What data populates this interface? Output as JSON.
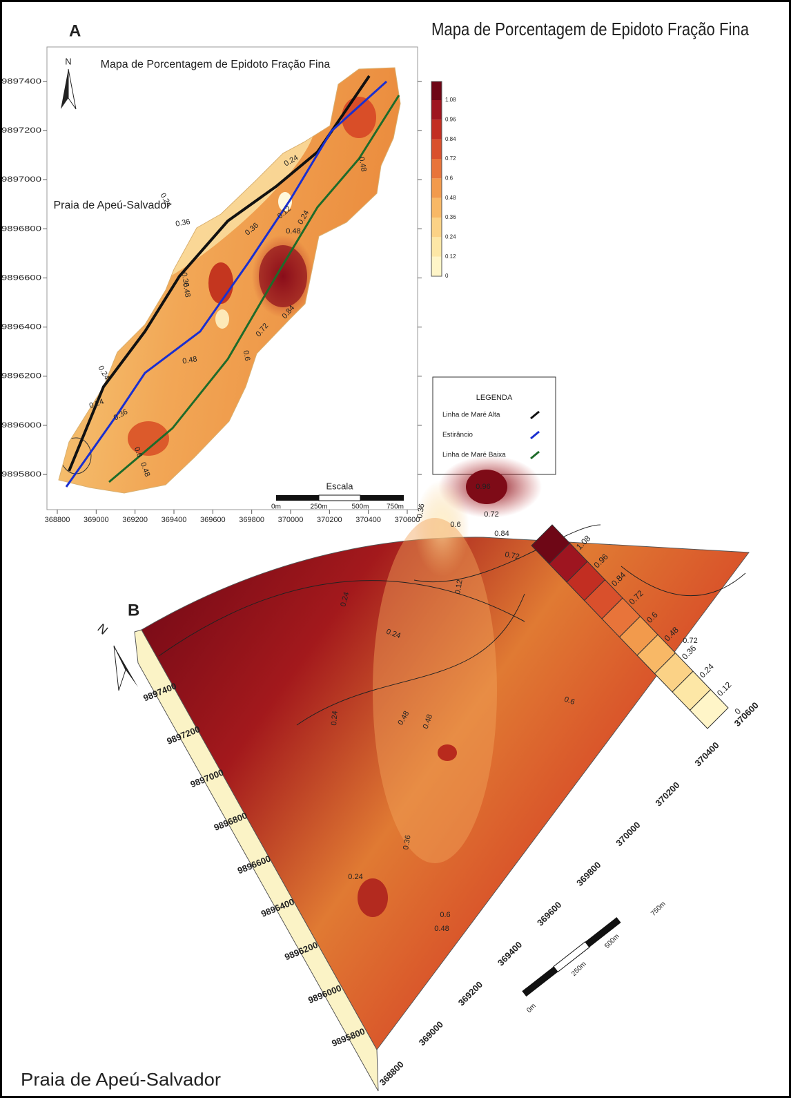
{
  "panel_a": {
    "label": "A",
    "figure_title": "Mapa de Porcentagem de Epidoto Fração Fina",
    "map_title": "Mapa de Porcentagem de Epidoto Fração Fina",
    "north": "N",
    "place": "Praia de Apeú-Salvador",
    "yticks": [
      9895800,
      9896000,
      9896200,
      9896400,
      9896600,
      9896800,
      9897000,
      9897200,
      9897400
    ],
    "xticks": [
      368800,
      369000,
      369200,
      369400,
      369600,
      369800,
      370000,
      370200,
      370400,
      370600
    ],
    "colorbar": [
      0,
      0.12,
      0.24,
      0.36,
      0.48,
      0.6,
      0.72,
      0.84,
      0.96,
      1.08
    ],
    "legend": {
      "title": "LEGENDA",
      "items": [
        {
          "name": "Linha de Maré Alta",
          "color": "#111111"
        },
        {
          "name": "Estirâncio",
          "color": "#1a2fd0"
        },
        {
          "name": "Linha de Maré Baixa",
          "color": "#1e6b2a"
        }
      ]
    },
    "scale": {
      "title": "Escala",
      "labels": [
        "0m",
        "250m",
        "500m",
        "750m"
      ]
    },
    "contour_labels": [
      0.24,
      0.24,
      0.36,
      0.12,
      0.24,
      0.36,
      0.48,
      0.36,
      0.48,
      0.48,
      0.24,
      0.24,
      0.36,
      0.6,
      0.48,
      0.84,
      0.72,
      0.6,
      0.48
    ]
  },
  "panel_b": {
    "label": "B",
    "north": "N",
    "place": "Praia de Apeú-Salvador",
    "yticks": [
      9895800,
      9896000,
      9896200,
      9896400,
      9896600,
      9896800,
      9897000,
      9897200,
      9897400
    ],
    "xticks": [
      368800,
      369000,
      369200,
      369400,
      369600,
      369800,
      370000,
      370200,
      370400,
      370600
    ],
    "colorbar": [
      0,
      0.12,
      0.24,
      0.36,
      0.48,
      0.6,
      0.72,
      0.84,
      0.96,
      1.08
    ],
    "scale": {
      "labels": [
        "0m",
        "250m",
        "500m",
        "750m"
      ]
    },
    "contour_labels": [
      0.24,
      0.24,
      0.12,
      0.72,
      0.96,
      0.84,
      0.36,
      0.6,
      0.72,
      0.24,
      0.48,
      0.48,
      0.24,
      0.36,
      0.6,
      0.48,
      0.72,
      0.6
    ]
  }
}
